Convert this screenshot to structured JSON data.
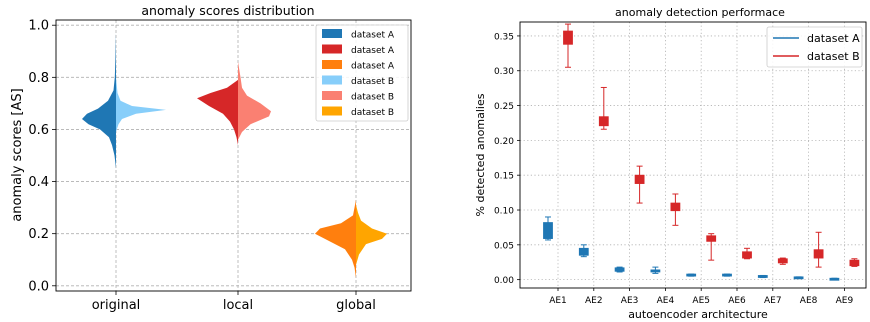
{
  "chart_data": [
    {
      "type": "violin",
      "title": "anomaly scores distribution",
      "xlabel": "",
      "ylabel": "anomaly scores [AS]",
      "categories": [
        "original",
        "local",
        "global"
      ],
      "yticks": [
        "0.0",
        "0.2",
        "0.4",
        "0.6",
        "0.8",
        "1.0"
      ],
      "ylim": [
        -0.02,
        1.02
      ],
      "grid": true,
      "legend_position": "top-right",
      "legend": [
        {
          "label": "dataset A",
          "color": "#1f77b4"
        },
        {
          "label": "dataset A",
          "color": "#d62728"
        },
        {
          "label": "dataset A",
          "color": "#ff7f0e"
        },
        {
          "label": "dataset B",
          "color": "#87cefa"
        },
        {
          "label": "dataset B",
          "color": "#fa8072"
        },
        {
          "label": "dataset B",
          "color": "#ffa500"
        }
      ],
      "violins": [
        {
          "category": "original",
          "left": {
            "series": "dataset A",
            "color": "#1f77b4",
            "range": [
              0.45,
              0.97
            ],
            "profile": [
              [
                0.45,
                0.0
              ],
              [
                0.5,
                0.03
              ],
              [
                0.54,
                0.08
              ],
              [
                0.57,
                0.14
              ],
              [
                0.6,
                0.32
              ],
              [
                0.62,
                0.55
              ],
              [
                0.64,
                0.68
              ],
              [
                0.66,
                0.58
              ],
              [
                0.68,
                0.36
              ],
              [
                0.71,
                0.16
              ],
              [
                0.75,
                0.05
              ],
              [
                0.8,
                0.025
              ],
              [
                0.87,
                0.012
              ],
              [
                0.97,
                0.0
              ]
            ]
          },
          "right": {
            "series": "dataset B",
            "color": "#87cefa",
            "range": [
              0.59,
              0.8
            ],
            "profile": [
              [
                0.59,
                0.0
              ],
              [
                0.62,
                0.05
              ],
              [
                0.64,
                0.12
              ],
              [
                0.66,
                0.4
              ],
              [
                0.675,
                1.0
              ],
              [
                0.69,
                0.32
              ],
              [
                0.71,
                0.09
              ],
              [
                0.74,
                0.03
              ],
              [
                0.8,
                0.0
              ]
            ]
          }
        },
        {
          "category": "local",
          "left": {
            "series": "dataset A",
            "color": "#d62728",
            "range": [
              0.54,
              0.79
            ],
            "profile": [
              [
                0.54,
                0.0
              ],
              [
                0.57,
                0.03
              ],
              [
                0.6,
                0.08
              ],
              [
                0.63,
                0.16
              ],
              [
                0.66,
                0.3
              ],
              [
                0.69,
                0.58
              ],
              [
                0.72,
                0.82
              ],
              [
                0.74,
                0.55
              ],
              [
                0.76,
                0.22
              ],
              [
                0.79,
                0.0
              ]
            ]
          },
          "right": {
            "series": "dataset B",
            "color": "#fa8072",
            "range": [
              0.56,
              0.86
            ],
            "profile": [
              [
                0.56,
                0.0
              ],
              [
                0.59,
                0.08
              ],
              [
                0.62,
                0.25
              ],
              [
                0.65,
                0.62
              ],
              [
                0.67,
                0.66
              ],
              [
                0.7,
                0.45
              ],
              [
                0.73,
                0.18
              ],
              [
                0.76,
                0.08
              ],
              [
                0.8,
                0.05
              ],
              [
                0.86,
                0.0
              ]
            ]
          }
        },
        {
          "category": "global",
          "left": {
            "series": "dataset A",
            "color": "#ff7f0e",
            "range": [
              0.03,
              0.33
            ],
            "profile": [
              [
                0.03,
                0.0
              ],
              [
                0.07,
                0.03
              ],
              [
                0.1,
                0.08
              ],
              [
                0.14,
                0.22
              ],
              [
                0.17,
                0.52
              ],
              [
                0.2,
                0.82
              ],
              [
                0.22,
                0.72
              ],
              [
                0.24,
                0.3
              ],
              [
                0.27,
                0.06
              ],
              [
                0.33,
                0.0
              ]
            ]
          },
          "right": {
            "series": "dataset B",
            "color": "#ffa500",
            "range": [
              0.08,
              0.31
            ],
            "profile": [
              [
                0.08,
                0.0
              ],
              [
                0.12,
                0.06
              ],
              [
                0.16,
                0.2
              ],
              [
                0.18,
                0.52
              ],
              [
                0.2,
                0.62
              ],
              [
                0.22,
                0.32
              ],
              [
                0.25,
                0.1
              ],
              [
                0.28,
                0.04
              ],
              [
                0.31,
                0.0
              ]
            ]
          }
        }
      ]
    },
    {
      "type": "box",
      "title": "anomaly detection performace",
      "xlabel": "autoencoder architecture",
      "ylabel": "% detected anomalies",
      "categories": [
        "AE1",
        "AE2",
        "AE3",
        "AE4",
        "AE5",
        "AE6",
        "AE7",
        "AE8",
        "AE9"
      ],
      "yticks": [
        "0.00",
        "0.05",
        "0.10",
        "0.15",
        "0.20",
        "0.25",
        "0.30",
        "0.35"
      ],
      "ylim": [
        -0.012,
        0.37
      ],
      "grid": true,
      "legend_position": "top-right",
      "series": [
        {
          "name": "dataset A",
          "color": "#1f77b4",
          "boxes": [
            {
              "whislo": 0.057,
              "q1": 0.059,
              "q3": 0.082,
              "whishi": 0.09
            },
            {
              "whislo": 0.033,
              "q1": 0.035,
              "q3": 0.045,
              "whishi": 0.05
            },
            {
              "whislo": 0.011,
              "q1": 0.012,
              "q3": 0.017,
              "whishi": 0.018
            },
            {
              "whislo": 0.009,
              "q1": 0.011,
              "q3": 0.014,
              "whishi": 0.018
            },
            {
              "whislo": 0.005,
              "q1": 0.006,
              "q3": 0.008,
              "whishi": 0.008
            },
            {
              "whislo": 0.005,
              "q1": 0.006,
              "q3": 0.008,
              "whishi": 0.008
            },
            {
              "whislo": 0.003,
              "q1": 0.004,
              "q3": 0.006,
              "whishi": 0.006
            },
            {
              "whislo": 0.002,
              "q1": 0.003,
              "q3": 0.004,
              "whishi": 0.004
            },
            {
              "whislo": 0.001,
              "q1": 0.001,
              "q3": 0.002,
              "whishi": 0.002
            }
          ]
        },
        {
          "name": "dataset B",
          "color": "#d62728",
          "boxes": [
            {
              "whislo": 0.305,
              "q1": 0.338,
              "q3": 0.357,
              "whishi": 0.367
            },
            {
              "whislo": 0.216,
              "q1": 0.221,
              "q3": 0.234,
              "whishi": 0.276
            },
            {
              "whislo": 0.11,
              "q1": 0.138,
              "q3": 0.15,
              "whishi": 0.163
            },
            {
              "whislo": 0.078,
              "q1": 0.099,
              "q3": 0.11,
              "whishi": 0.123
            },
            {
              "whislo": 0.028,
              "q1": 0.055,
              "q3": 0.063,
              "whishi": 0.066
            },
            {
              "whislo": 0.03,
              "q1": 0.031,
              "q3": 0.04,
              "whishi": 0.045
            },
            {
              "whislo": 0.022,
              "q1": 0.024,
              "q3": 0.03,
              "whishi": 0.031
            },
            {
              "whislo": 0.018,
              "q1": 0.031,
              "q3": 0.043,
              "whishi": 0.068
            },
            {
              "whislo": 0.019,
              "q1": 0.02,
              "q3": 0.028,
              "whishi": 0.03
            }
          ]
        }
      ]
    }
  ]
}
